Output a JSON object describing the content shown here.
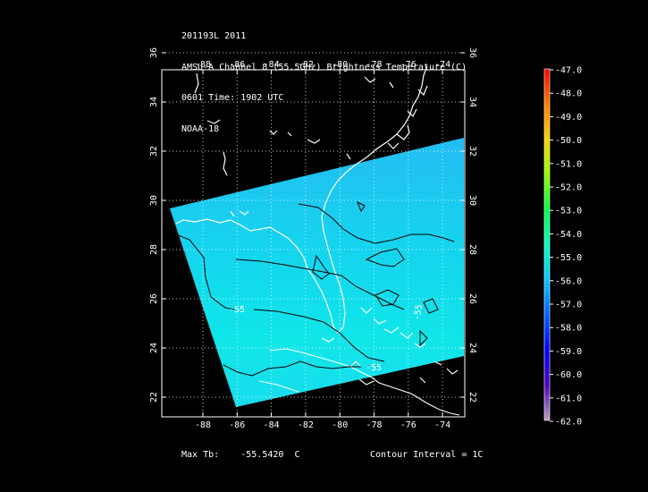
{
  "header": {
    "line1": "201193L 2011",
    "line2": "AMSU-A Channel 8 (55.5GHz) Brightness Temperature (C)",
    "line3": "0601 Time: 1902 UTC",
    "line4": "NOAA-18"
  },
  "map": {
    "lon_ticks": [
      "-88",
      "-86",
      "-84",
      "-82",
      "-80",
      "-78",
      "-76",
      "-74"
    ],
    "lat_ticks": [
      "22",
      "24",
      "26",
      "28",
      "30",
      "32",
      "34",
      "36"
    ],
    "contour_labels": [
      "-55",
      "-55",
      "-55"
    ],
    "swath_color": "#15d8ef",
    "coast_color": "#ffffff",
    "contour_color": "#000000"
  },
  "colorbar": {
    "labels": [
      "-47.0",
      "-48.0",
      "-49.0",
      "-50.0",
      "-51.0",
      "-52.0",
      "-53.0",
      "-54.0",
      "-55.0",
      "-56.0",
      "-57.0",
      "-58.0",
      "-59.0",
      "-60.0",
      "-61.0",
      "-62.0"
    ]
  },
  "footer": {
    "max_label": "Max Tb:",
    "max_value": "-55.5420",
    "max_unit": "C",
    "contour_interval": "Contour Interval = 1C"
  }
}
